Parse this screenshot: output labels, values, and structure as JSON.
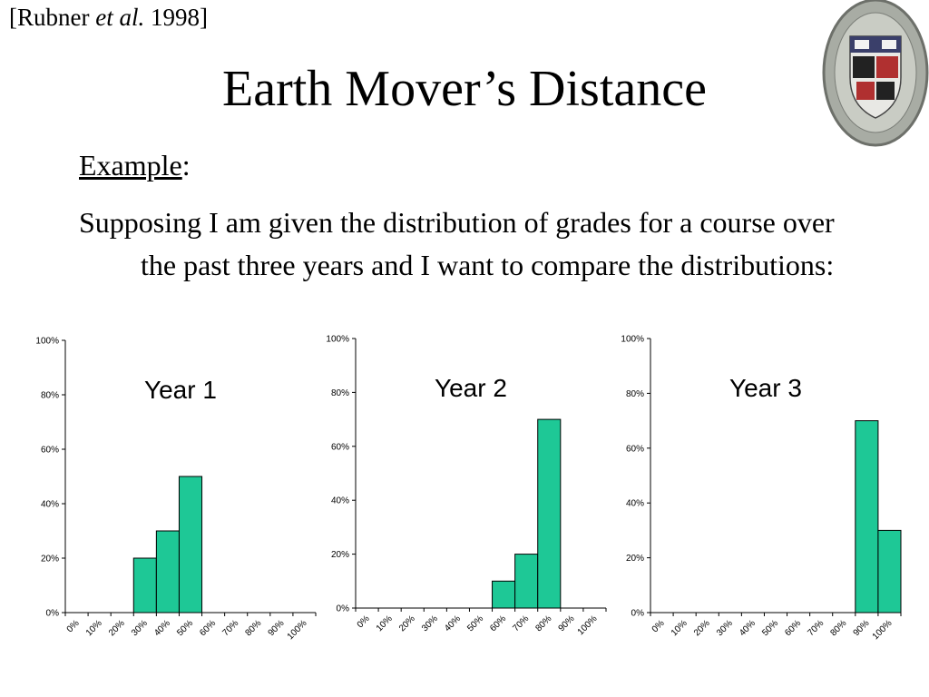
{
  "slide": {
    "citation": [
      "[Rubner ",
      "et al.",
      " 1998]"
    ],
    "title": "Earth Mover’s Distance",
    "label": "Example",
    "label_suffix": ":",
    "text": "Supposing I am given the distribution of grades for a course over the past three years and I want to compare the distributions:"
  },
  "chart_data": [
    {
      "type": "bar",
      "title": "Year 1",
      "color": "#1ec896",
      "categories": [
        "0%",
        "10%",
        "20%",
        "30%",
        "40%",
        "50%",
        "60%",
        "70%",
        "80%",
        "90%",
        "100%"
      ],
      "values": [
        0,
        0,
        0,
        20,
        30,
        50,
        0,
        0,
        0,
        0,
        0
      ],
      "ylim": [
        0,
        100
      ],
      "yticks": [
        {
          "value": 0,
          "label": "0%"
        },
        {
          "value": 20,
          "label": "20%"
        },
        {
          "value": 40,
          "label": "40%"
        },
        {
          "value": 60,
          "label": "60%"
        },
        {
          "value": 80,
          "label": "80%"
        },
        {
          "value": 100,
          "label": "100%"
        }
      ]
    },
    {
      "type": "bar",
      "title": "Year 2",
      "color": "#1ec896",
      "categories": [
        "0%",
        "10%",
        "20%",
        "30%",
        "40%",
        "50%",
        "60%",
        "70%",
        "80%",
        "90%",
        "100%"
      ],
      "values": [
        0,
        0,
        0,
        0,
        0,
        0,
        10,
        20,
        70,
        0,
        0
      ],
      "ylim": [
        0,
        100
      ],
      "yticks": [
        {
          "value": 0,
          "label": "0%"
        },
        {
          "value": 20,
          "label": "20%"
        },
        {
          "value": 40,
          "label": "40%"
        },
        {
          "value": 60,
          "label": "60%"
        },
        {
          "value": 80,
          "label": "80%"
        },
        {
          "value": 100,
          "label": "100%"
        }
      ]
    },
    {
      "type": "bar",
      "title": "Year 3",
      "color": "#1ec896",
      "categories": [
        "0%",
        "10%",
        "20%",
        "30%",
        "40%",
        "50%",
        "60%",
        "70%",
        "80%",
        "90%",
        "100%"
      ],
      "values": [
        0,
        0,
        0,
        0,
        0,
        0,
        0,
        0,
        0,
        70,
        30
      ],
      "ylim": [
        0,
        100
      ],
      "yticks": [
        {
          "value": 0,
          "label": "0%"
        },
        {
          "value": 20,
          "label": "20%"
        },
        {
          "value": 40,
          "label": "40%"
        },
        {
          "value": 60,
          "label": "60%"
        },
        {
          "value": 80,
          "label": "80%"
        },
        {
          "value": 100,
          "label": "100%"
        }
      ]
    }
  ]
}
